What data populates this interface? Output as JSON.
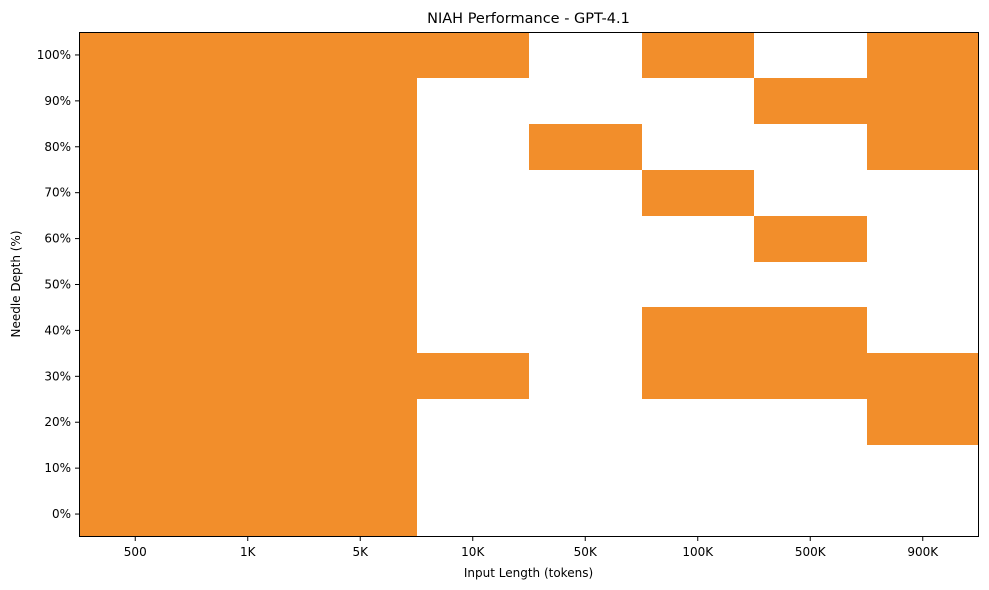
{
  "chart_data": {
    "type": "heatmap",
    "title": "NIAH Performance - GPT-4.1",
    "xlabel": "Input Length (tokens)",
    "ylabel": "Needle Depth (%)",
    "x_categories": [
      "500",
      "1K",
      "5K",
      "10K",
      "50K",
      "100K",
      "500K",
      "900K"
    ],
    "y_categories": [
      "0%",
      "10%",
      "20%",
      "30%",
      "40%",
      "50%",
      "60%",
      "70%",
      "80%",
      "90%",
      "100%"
    ],
    "values_note_encoding": "rows follow y_categories (0% first); columns follow x_categories; 1 = retrieved (orange), 0 = not retrieved (white)",
    "values": [
      [
        1,
        1,
        1,
        0,
        0,
        0,
        0,
        0
      ],
      [
        1,
        1,
        1,
        0,
        0,
        0,
        0,
        0
      ],
      [
        1,
        1,
        1,
        0,
        0,
        0,
        0,
        1
      ],
      [
        1,
        1,
        1,
        1,
        0,
        1,
        1,
        1
      ],
      [
        1,
        1,
        1,
        0,
        0,
        1,
        1,
        0
      ],
      [
        1,
        1,
        1,
        0,
        0,
        0,
        0,
        0
      ],
      [
        1,
        1,
        1,
        0,
        0,
        0,
        1,
        0
      ],
      [
        1,
        1,
        1,
        0,
        0,
        1,
        0,
        0
      ],
      [
        1,
        1,
        1,
        0,
        1,
        0,
        0,
        1
      ],
      [
        1,
        1,
        1,
        0,
        0,
        0,
        1,
        1
      ],
      [
        1,
        1,
        1,
        1,
        0,
        1,
        0,
        1
      ]
    ],
    "colors": {
      "hit": "#f28e2b",
      "miss": "#ffffff",
      "axis": "#000000"
    },
    "grid": false,
    "legend": "none"
  }
}
